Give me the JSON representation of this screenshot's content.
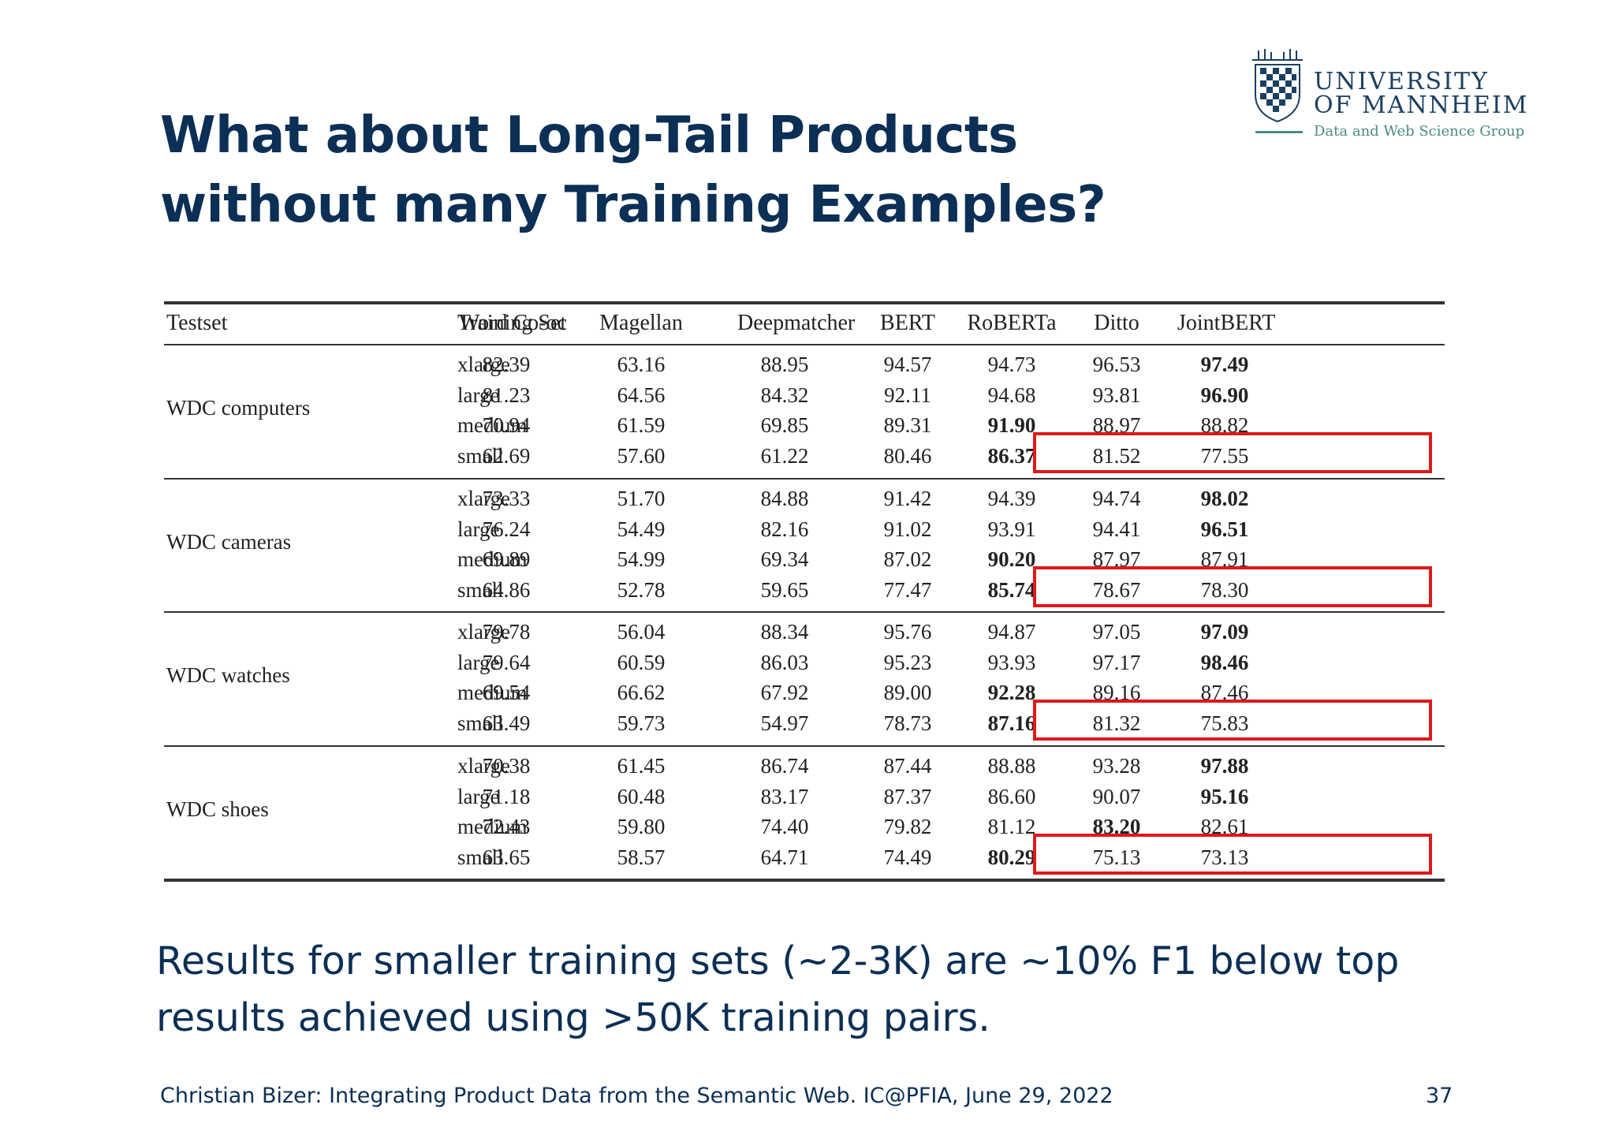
{
  "slide": {
    "title_line1": "What about Long-Tail Products",
    "title_line2": "without many Training Examples?",
    "body_line1": "Results for smaller training sets (~2-3K) are ~10% F1 below top",
    "body_line2": "results achieved using >50K training pairs.",
    "footer": "Christian Bizer: Integrating Product Data from the Semantic Web. IC@PFIA, June 29, 2022",
    "page_number": "37"
  },
  "logo": {
    "line1": "UNIVERSITY",
    "line2": "OF MANNHEIM",
    "subtitle": "Data and Web Science Group",
    "colors": {
      "navy": "#1b3f60",
      "teal": "#4a8a84"
    }
  },
  "table": {
    "headers": [
      "Testset",
      "Training Set",
      "Word Co-oc",
      "Magellan",
      "Deepmatcher",
      "BERT",
      "RoBERTa",
      "Ditto",
      "JointBERT"
    ],
    "groups": [
      {
        "testset": "WDC computers",
        "rows": [
          {
            "set": "xlarge",
            "values": [
              "82.39",
              "63.16",
              "88.95",
              "94.57",
              "94.73",
              "96.53",
              "97.49"
            ],
            "bold": 6
          },
          {
            "set": "large",
            "values": [
              "81.23",
              "64.56",
              "84.32",
              "92.11",
              "94.68",
              "93.81",
              "96.90"
            ],
            "bold": 6
          },
          {
            "set": "medium",
            "values": [
              "70.94",
              "61.59",
              "69.85",
              "89.31",
              "91.90",
              "88.97",
              "88.82"
            ],
            "bold": 4
          },
          {
            "set": "small",
            "values": [
              "62.69",
              "57.60",
              "61.22",
              "80.46",
              "86.37",
              "81.52",
              "77.55"
            ],
            "bold": 4
          }
        ]
      },
      {
        "testset": "WDC cameras",
        "rows": [
          {
            "set": "xlarge",
            "values": [
              "73.33",
              "51.70",
              "84.88",
              "91.42",
              "94.39",
              "94.74",
              "98.02"
            ],
            "bold": 6
          },
          {
            "set": "large",
            "values": [
              "76.24",
              "54.49",
              "82.16",
              "91.02",
              "93.91",
              "94.41",
              "96.51"
            ],
            "bold": 6
          },
          {
            "set": "medium",
            "values": [
              "69.89",
              "54.99",
              "69.34",
              "87.02",
              "90.20",
              "87.97",
              "87.91"
            ],
            "bold": 4
          },
          {
            "set": "small",
            "values": [
              "64.86",
              "52.78",
              "59.65",
              "77.47",
              "85.74",
              "78.67",
              "78.30"
            ],
            "bold": 4
          }
        ]
      },
      {
        "testset": "WDC watches",
        "rows": [
          {
            "set": "xlarge",
            "values": [
              "79.78",
              "56.04",
              "88.34",
              "95.76",
              "94.87",
              "97.05",
              "97.09"
            ],
            "bold": 6
          },
          {
            "set": "large",
            "values": [
              "79.64",
              "60.59",
              "86.03",
              "95.23",
              "93.93",
              "97.17",
              "98.46"
            ],
            "bold": 6
          },
          {
            "set": "medium",
            "values": [
              "69.54",
              "66.62",
              "67.92",
              "89.00",
              "92.28",
              "89.16",
              "87.46"
            ],
            "bold": 4
          },
          {
            "set": "small",
            "values": [
              "63.49",
              "59.73",
              "54.97",
              "78.73",
              "87.16",
              "81.32",
              "75.83"
            ],
            "bold": 4
          }
        ]
      },
      {
        "testset": "WDC shoes",
        "rows": [
          {
            "set": "xlarge",
            "values": [
              "70.38",
              "61.45",
              "86.74",
              "87.44",
              "88.88",
              "93.28",
              "97.88"
            ],
            "bold": 6
          },
          {
            "set": "large",
            "values": [
              "71.18",
              "60.48",
              "83.17",
              "87.37",
              "86.60",
              "90.07",
              "95.16"
            ],
            "bold": 6
          },
          {
            "set": "medium",
            "values": [
              "72.43",
              "59.80",
              "74.40",
              "79.82",
              "81.12",
              "83.20",
              "82.61"
            ],
            "bold": 5
          },
          {
            "set": "small",
            "values": [
              "63.65",
              "58.57",
              "64.71",
              "74.49",
              "80.29",
              "75.13",
              "73.13"
            ],
            "bold": 4
          }
        ]
      }
    ],
    "highlight_color": "#e01818"
  }
}
